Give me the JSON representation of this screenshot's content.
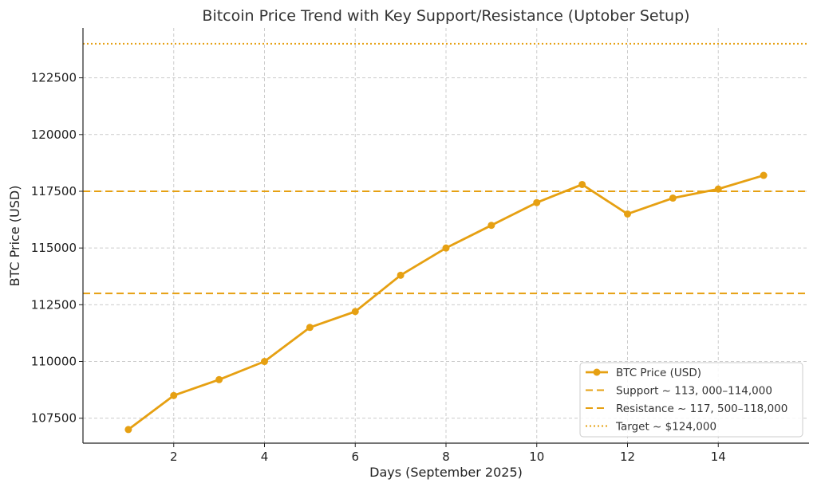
{
  "chart_data": {
    "type": "line",
    "title": "Bitcoin Price Trend with Key Support/Resistance (Uptober Setup)",
    "xlabel": "Days (September 2025)",
    "ylabel": "BTC Price (USD)",
    "xlim": [
      0,
      16
    ],
    "ylim": [
      106400,
      124700
    ],
    "xticks": [
      2,
      4,
      6,
      8,
      10,
      12,
      14
    ],
    "yticks": [
      107500,
      110000,
      112500,
      115000,
      117500,
      120000,
      122500
    ],
    "grid": true,
    "legend_position": "bottom-right",
    "series": [
      {
        "name": "BTC Price (USD)",
        "color": "#e6a012",
        "marker": "circle",
        "x": [
          1,
          2,
          3,
          4,
          5,
          6,
          7,
          8,
          9,
          10,
          11,
          12,
          13,
          14,
          15
        ],
        "y": [
          107000,
          108500,
          109200,
          110000,
          111500,
          112200,
          113800,
          115000,
          116000,
          117000,
          117800,
          116500,
          117200,
          117600,
          118200
        ]
      }
    ],
    "hlines": [
      {
        "name": "Support ~ 113, 000–114,000",
        "y": 113000,
        "style": "dashed",
        "color": "#e6a012"
      },
      {
        "name": "Resistance ~ 117, 500–118,000",
        "y": 117500,
        "style": "dashed",
        "color": "#e6a012"
      },
      {
        "name": "Target ~ $124,000",
        "y": 124000,
        "style": "dotted",
        "color": "#e6a012"
      }
    ]
  }
}
